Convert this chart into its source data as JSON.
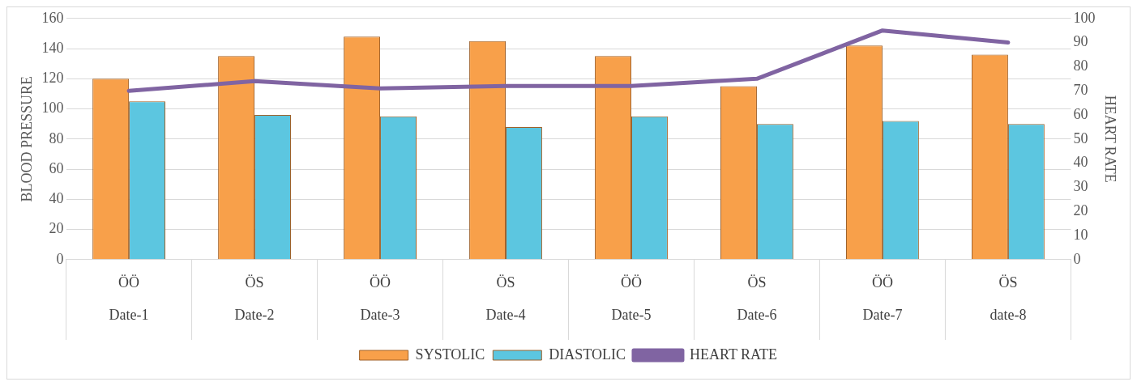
{
  "chart_data": {
    "type": "bar",
    "categories": [
      "ÖÖ\nDate-1",
      "ÖS\nDate-2",
      "ÖÖ\nDate-3",
      "ÖS\nDate-4",
      "ÖÖ\nDate-5",
      "ÖS\nDate-6",
      "ÖÖ\nDate-7",
      "ÖS\ndate-8"
    ],
    "series": [
      {
        "name": "SYSTOLIC",
        "color": "#f8a04a",
        "values": [
          120,
          135,
          148,
          145,
          135,
          115,
          142,
          136
        ]
      },
      {
        "name": "DIASTOLIC",
        "color": "#5cc6e0",
        "values": [
          105,
          96,
          95,
          88,
          95,
          90,
          92,
          90
        ]
      },
      {
        "name": "HEART RATE",
        "type": "line",
        "axis": "y2",
        "color": "#8064a2",
        "values": [
          70,
          74,
          71,
          72,
          72,
          75,
          95,
          90
        ]
      }
    ],
    "ylabel": "BLOOD PRESSURE",
    "y2label": "HEART RATE",
    "ylim": [
      0,
      160
    ],
    "yticks": [
      0,
      20,
      40,
      60,
      80,
      100,
      120,
      140,
      160
    ],
    "y2lim": [
      0,
      100
    ],
    "y2ticks": [
      0,
      10,
      20,
      30,
      40,
      50,
      60,
      70,
      80,
      90,
      100
    ],
    "grid": "y",
    "legend": "bottom",
    "marker": "none"
  }
}
